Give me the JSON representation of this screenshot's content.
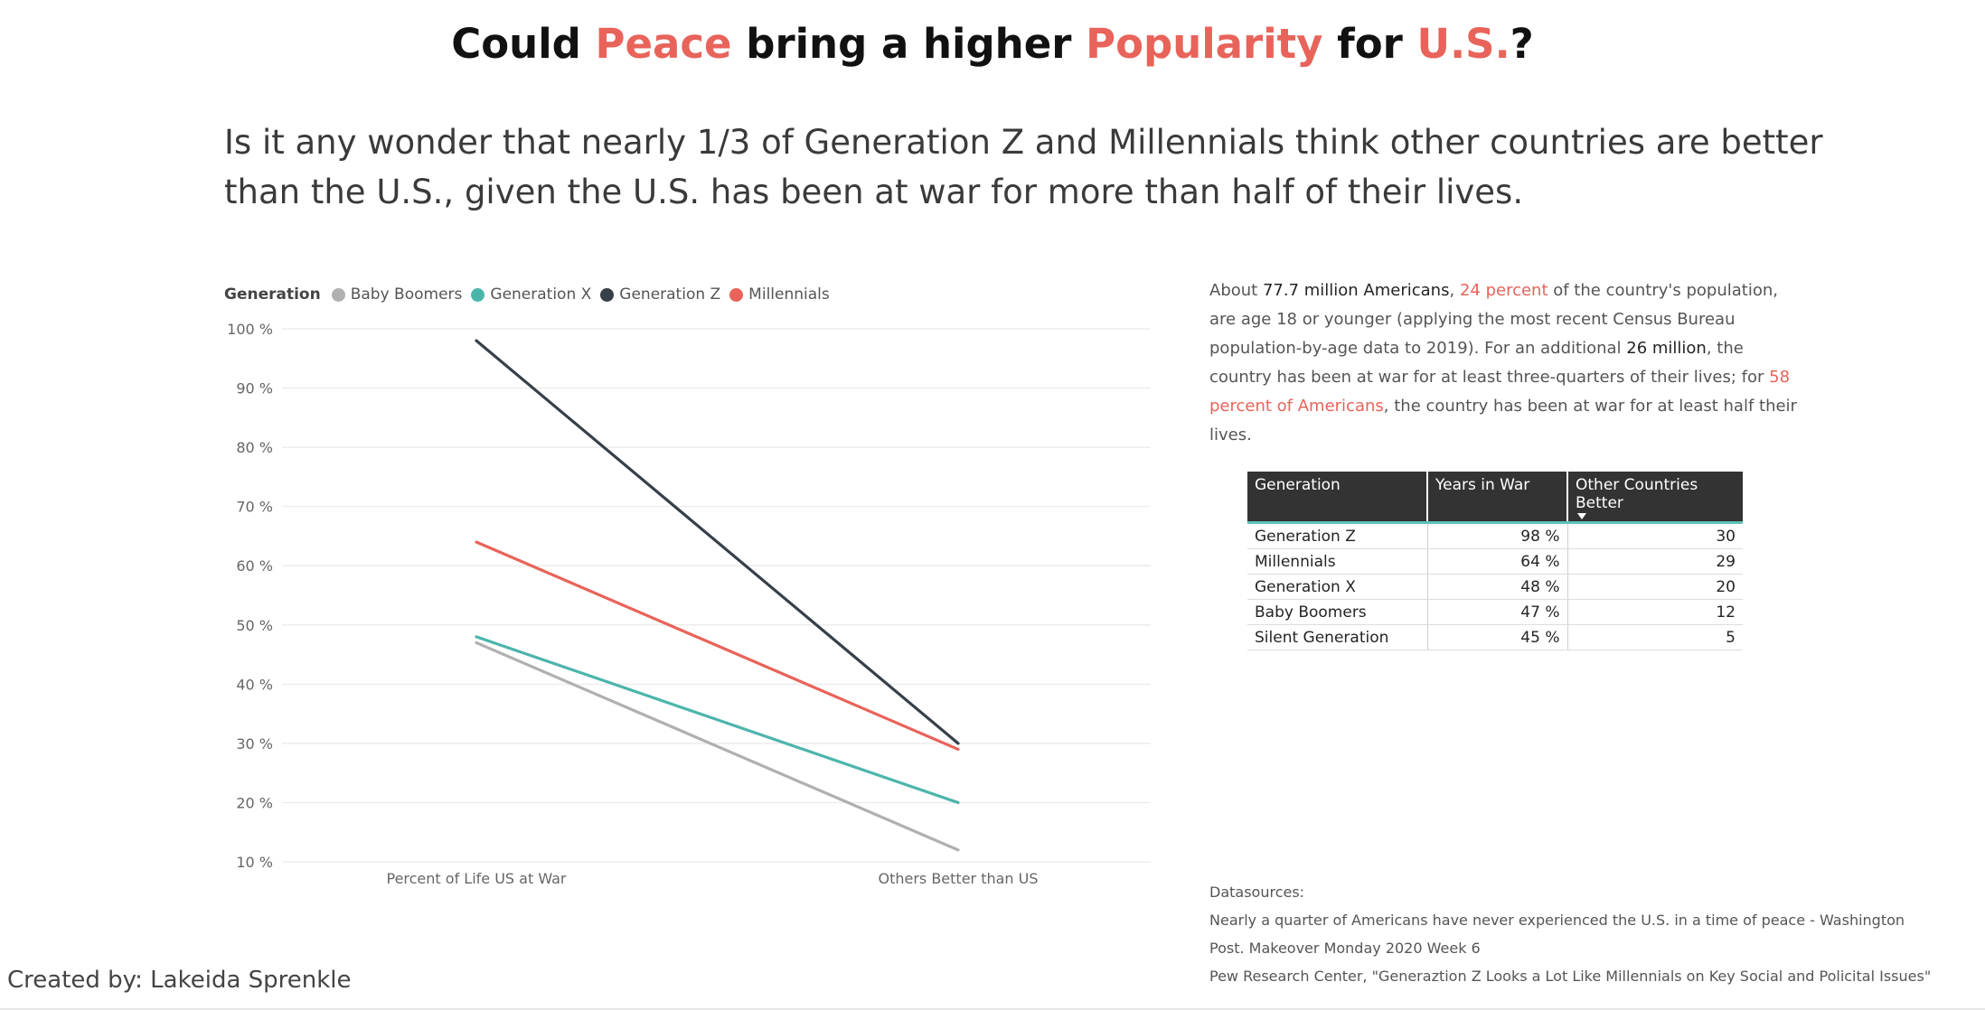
{
  "title": {
    "p1": "Could ",
    "a1": "Peace",
    "p2": " bring a higher ",
    "a2": "Popularity",
    "p3": " for ",
    "a3": "U.S.",
    "p4": "?"
  },
  "subtitle": "Is it any wonder that nearly 1/3 of Generation Z and Millennials think other countries are better than the U.S., given the U.S. has been at war for more than half of their lives.",
  "legend": {
    "title": "Generation"
  },
  "chart_data": {
    "type": "line",
    "title": "",
    "xlabel": "",
    "ylabel": "",
    "categories": [
      "Percent of Life US at War",
      "Others Better than US"
    ],
    "series": [
      {
        "name": "Baby Boomers",
        "color": "#b0b0b0",
        "values": [
          47,
          12
        ]
      },
      {
        "name": "Generation X",
        "color": "#4cb5ab",
        "values": [
          48,
          20
        ]
      },
      {
        "name": "Generation Z",
        "color": "#374049",
        "values": [
          98,
          30
        ]
      },
      {
        "name": "Millennials",
        "color": "#e8635a",
        "values": [
          64,
          29
        ]
      }
    ],
    "ylim": [
      10,
      100
    ],
    "yticks": [
      10,
      20,
      30,
      40,
      50,
      60,
      70,
      80,
      90,
      100
    ],
    "ytick_labels": [
      "10 %",
      "20 %",
      "30 %",
      "40 %",
      "50 %",
      "60 %",
      "70 %",
      "80 %",
      "90 %",
      "100 %"
    ],
    "grid": true,
    "legend_position": "top-left"
  },
  "info": {
    "s1": "About ",
    "v1": "77.7 million Americans",
    "s2": ", ",
    "v2": "24 percent",
    "s3": " of the country's population, are age 18 or younger (applying the most recent Census Bureau population-by-age data to 2019). For an additional ",
    "v3": "26 million",
    "s4": ", the country has been at war for at least three-quarters of their lives; for ",
    "v4": "58 percent of Americans",
    "s5": ", the country has been at war for at least half their lives."
  },
  "table": {
    "headers": [
      "Generation",
      "Years in War",
      "Other Countries Better"
    ],
    "rows": [
      [
        "Generation Z",
        "98 %",
        "30"
      ],
      [
        "Millennials",
        "64 %",
        "29"
      ],
      [
        "Generation X",
        "48 %",
        "20"
      ],
      [
        "Baby Boomers",
        "47 %",
        "12"
      ],
      [
        "Silent Generation",
        "45 %",
        "5"
      ]
    ]
  },
  "sources": {
    "label": "Datasources:",
    "line1": "Nearly a quarter of Americans have never experienced the U.S. in a time of peace - Washington",
    "line2": "Post. Makeover Monday 2020 Week 6",
    "line3": "Pew Research Center, \"Generaztion Z Looks a Lot Like Millennials on Key Social and Policital Issues\""
  },
  "credit": "Created by: Lakeida Sprenkle"
}
